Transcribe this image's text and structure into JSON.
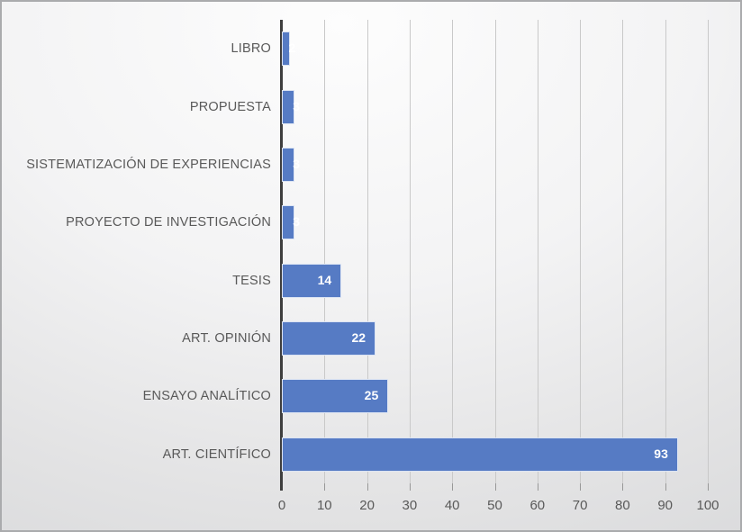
{
  "chart_data": {
    "type": "bar",
    "orientation": "horizontal",
    "title": "",
    "xlabel": "",
    "ylabel": "",
    "categories": [
      "LIBRO",
      "PROPUESTA",
      "SISTEMATIZACIÓN DE EXPERIENCIAS",
      "PROYECTO DE INVESTIGACIÓN",
      "TESIS",
      "ART. OPINIÓN",
      "ENSAYO ANALÍTICO",
      "ART. CIENTÍFICO"
    ],
    "values": [
      2,
      3,
      3,
      3,
      14,
      22,
      25,
      93
    ],
    "xlim": [
      0,
      100
    ],
    "x_tick_step": 10,
    "x_tick_labels": [
      "0",
      "10",
      "20",
      "30",
      "40",
      "50",
      "60",
      "70",
      "80",
      "90",
      "100"
    ],
    "grid": "vertical-major-on",
    "legend": "none",
    "data_labels": "inside-end-white-bold",
    "colors": {
      "bar_fill": "#567bc4",
      "bar_border": "#dce4f3",
      "value_label_text": "#ffffff",
      "axis_text": "#595959",
      "gridline": "#c9c9c9",
      "tick": "#989898",
      "axis_line": "#3e3e3e",
      "frame_border": "#aaabad"
    }
  }
}
